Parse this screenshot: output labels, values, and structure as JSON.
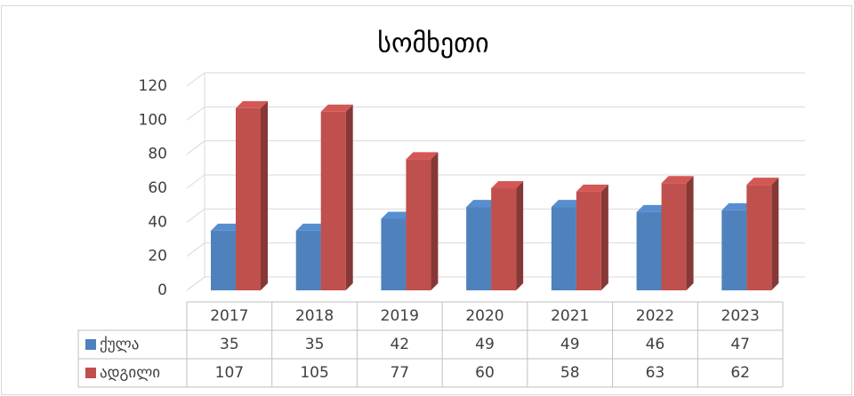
{
  "chart_data": {
    "type": "bar3d",
    "title": "სომხეთი",
    "categories": [
      "2017",
      "2018",
      "2019",
      "2020",
      "2021",
      "2022",
      "2023"
    ],
    "series": [
      {
        "name": "ქულა",
        "color": "#4f81bd",
        "values": [
          35,
          35,
          42,
          49,
          49,
          46,
          47
        ]
      },
      {
        "name": "ადგილი",
        "color": "#c0504d",
        "values": [
          107,
          105,
          77,
          60,
          58,
          63,
          62
        ]
      }
    ],
    "ylim": [
      0,
      120
    ],
    "yticks": [
      0,
      20,
      40,
      60,
      80,
      100,
      120
    ],
    "grid": true
  }
}
